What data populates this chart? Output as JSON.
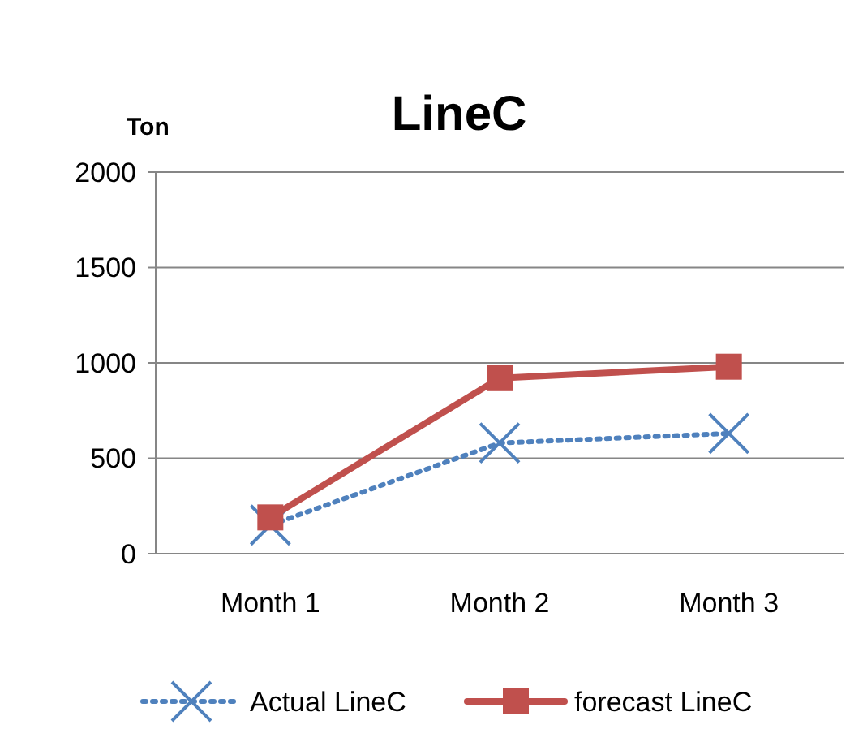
{
  "chart_data": {
    "type": "line",
    "title": "LineC",
    "ylabel": "Ton",
    "categories": [
      "Month 1",
      "Month 2",
      "Month 3"
    ],
    "series": [
      {
        "name": "Actual LineC",
        "color": "#4f81bd",
        "values": [
          150,
          580,
          630
        ],
        "marker": "cross",
        "line_style": "dotted"
      },
      {
        "name": "forecast LineC",
        "color": "#c0504d",
        "values": [
          190,
          920,
          980
        ],
        "marker": "square",
        "line_style": "solid"
      }
    ],
    "ylim": [
      0,
      2000
    ],
    "yticks": [
      0,
      500,
      1000,
      1500,
      2000
    ],
    "grid": "y",
    "legend": "bottom"
  }
}
